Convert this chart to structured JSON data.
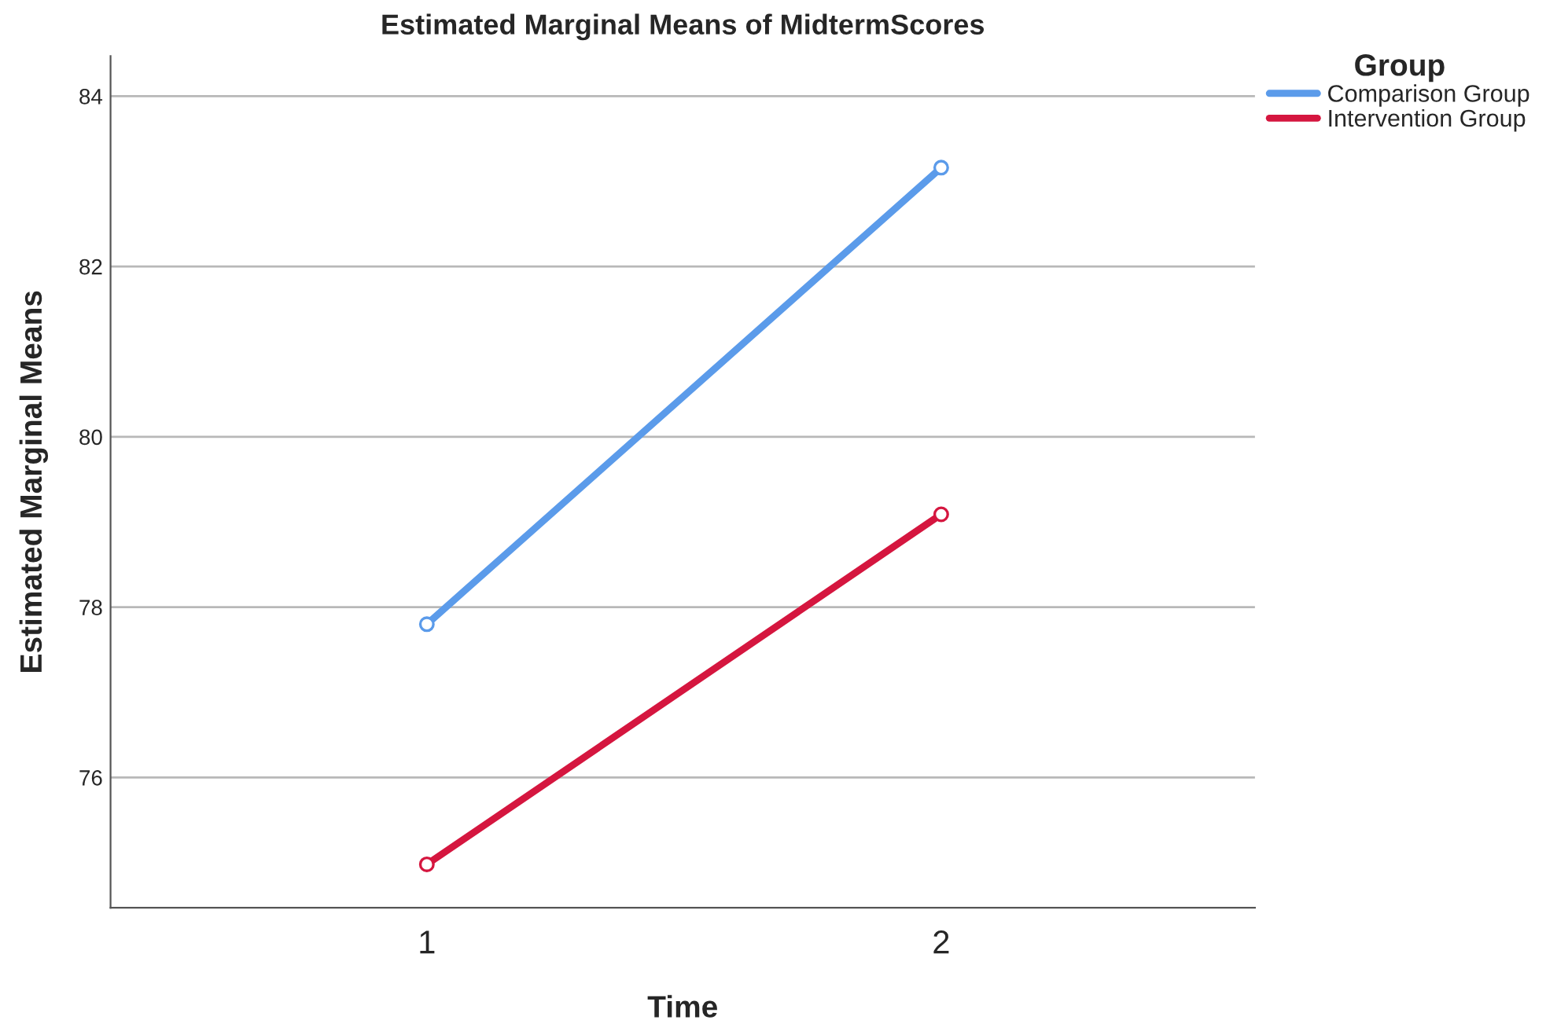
{
  "chart_data": {
    "type": "line",
    "title": "Estimated Marginal Means of MidtermScores",
    "xlabel": "Time",
    "ylabel": "Estimated Marginal Means",
    "legend_title": "Group",
    "categories": [
      "1",
      "2"
    ],
    "series": [
      {
        "name": "Comparison Group",
        "color": "#5b9bea",
        "values": [
          77.8,
          83.16
        ]
      },
      {
        "name": "Intervention Group",
        "color": "#d5163f",
        "values": [
          74.98,
          79.09
        ]
      }
    ],
    "ylim": [
      74.47,
      84.47
    ],
    "yticks": [
      76,
      78,
      80,
      82,
      84
    ],
    "grid": "y",
    "legend": "top right",
    "marker": "circle",
    "line_style": "solid"
  }
}
